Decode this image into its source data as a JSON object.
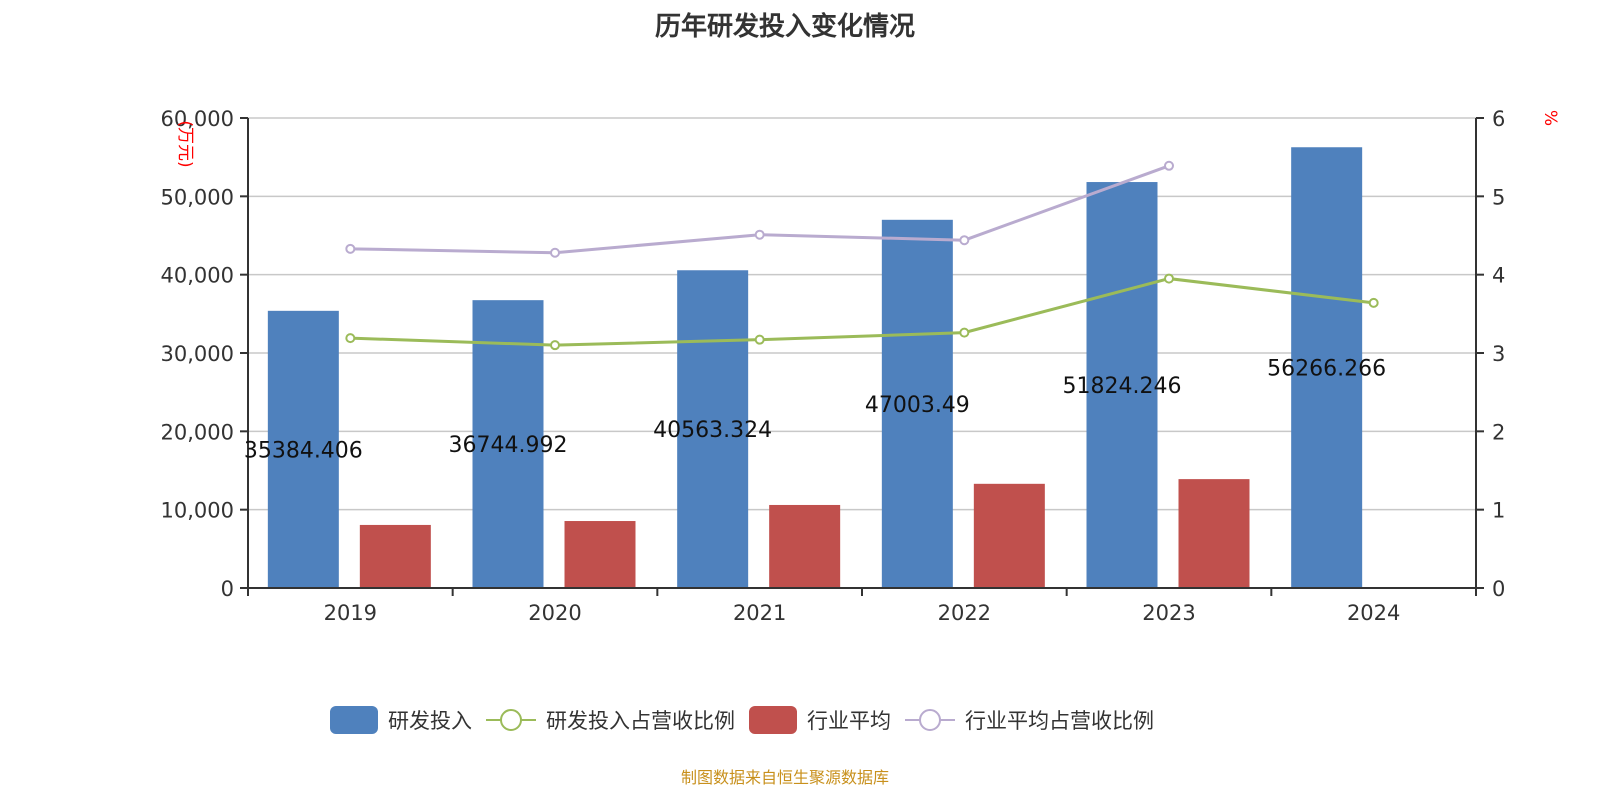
{
  "chart_data": {
    "type": "bar",
    "title": "历年研发投入变化情况",
    "categories": [
      "2019",
      "2020",
      "2021",
      "2022",
      "2023",
      "2024"
    ],
    "ylabel": "(万元)",
    "y2label": "%",
    "ylim": [
      0,
      60000
    ],
    "y2lim": [
      0,
      6
    ],
    "yticks": [
      "0",
      "10,000",
      "20,000",
      "30,000",
      "40,000",
      "50,000",
      "60,000"
    ],
    "y2ticks": [
      "0",
      "1",
      "2",
      "3",
      "4",
      "5",
      "6"
    ],
    "series": [
      {
        "name": "研发投入",
        "type": "bar",
        "axis": "left",
        "color": "#4f81bd",
        "values": [
          35384.406,
          36744.992,
          40563.324,
          47003.49,
          51824.246,
          56266.266
        ],
        "labels": [
          "35384.406",
          "36744.992",
          "40563.324",
          "47003.49",
          "51824.246",
          "56266.266"
        ]
      },
      {
        "name": "研发投入占营收比例",
        "type": "line",
        "axis": "right",
        "color": "#9bbb59",
        "values": [
          3.19,
          3.1,
          3.17,
          3.26,
          3.95,
          3.64
        ]
      },
      {
        "name": "行业平均",
        "type": "bar",
        "axis": "left",
        "color": "#c0504d",
        "values": [
          8050,
          8550,
          10600,
          13300,
          13900,
          null
        ]
      },
      {
        "name": "行业平均占营收比例",
        "type": "line",
        "axis": "right",
        "color": "#b9abcf",
        "values": [
          4.33,
          4.28,
          4.51,
          4.44,
          5.39,
          null
        ]
      }
    ],
    "legend_position": "bottom",
    "grid": true
  },
  "source": "制图数据来自恒生聚源数据库"
}
